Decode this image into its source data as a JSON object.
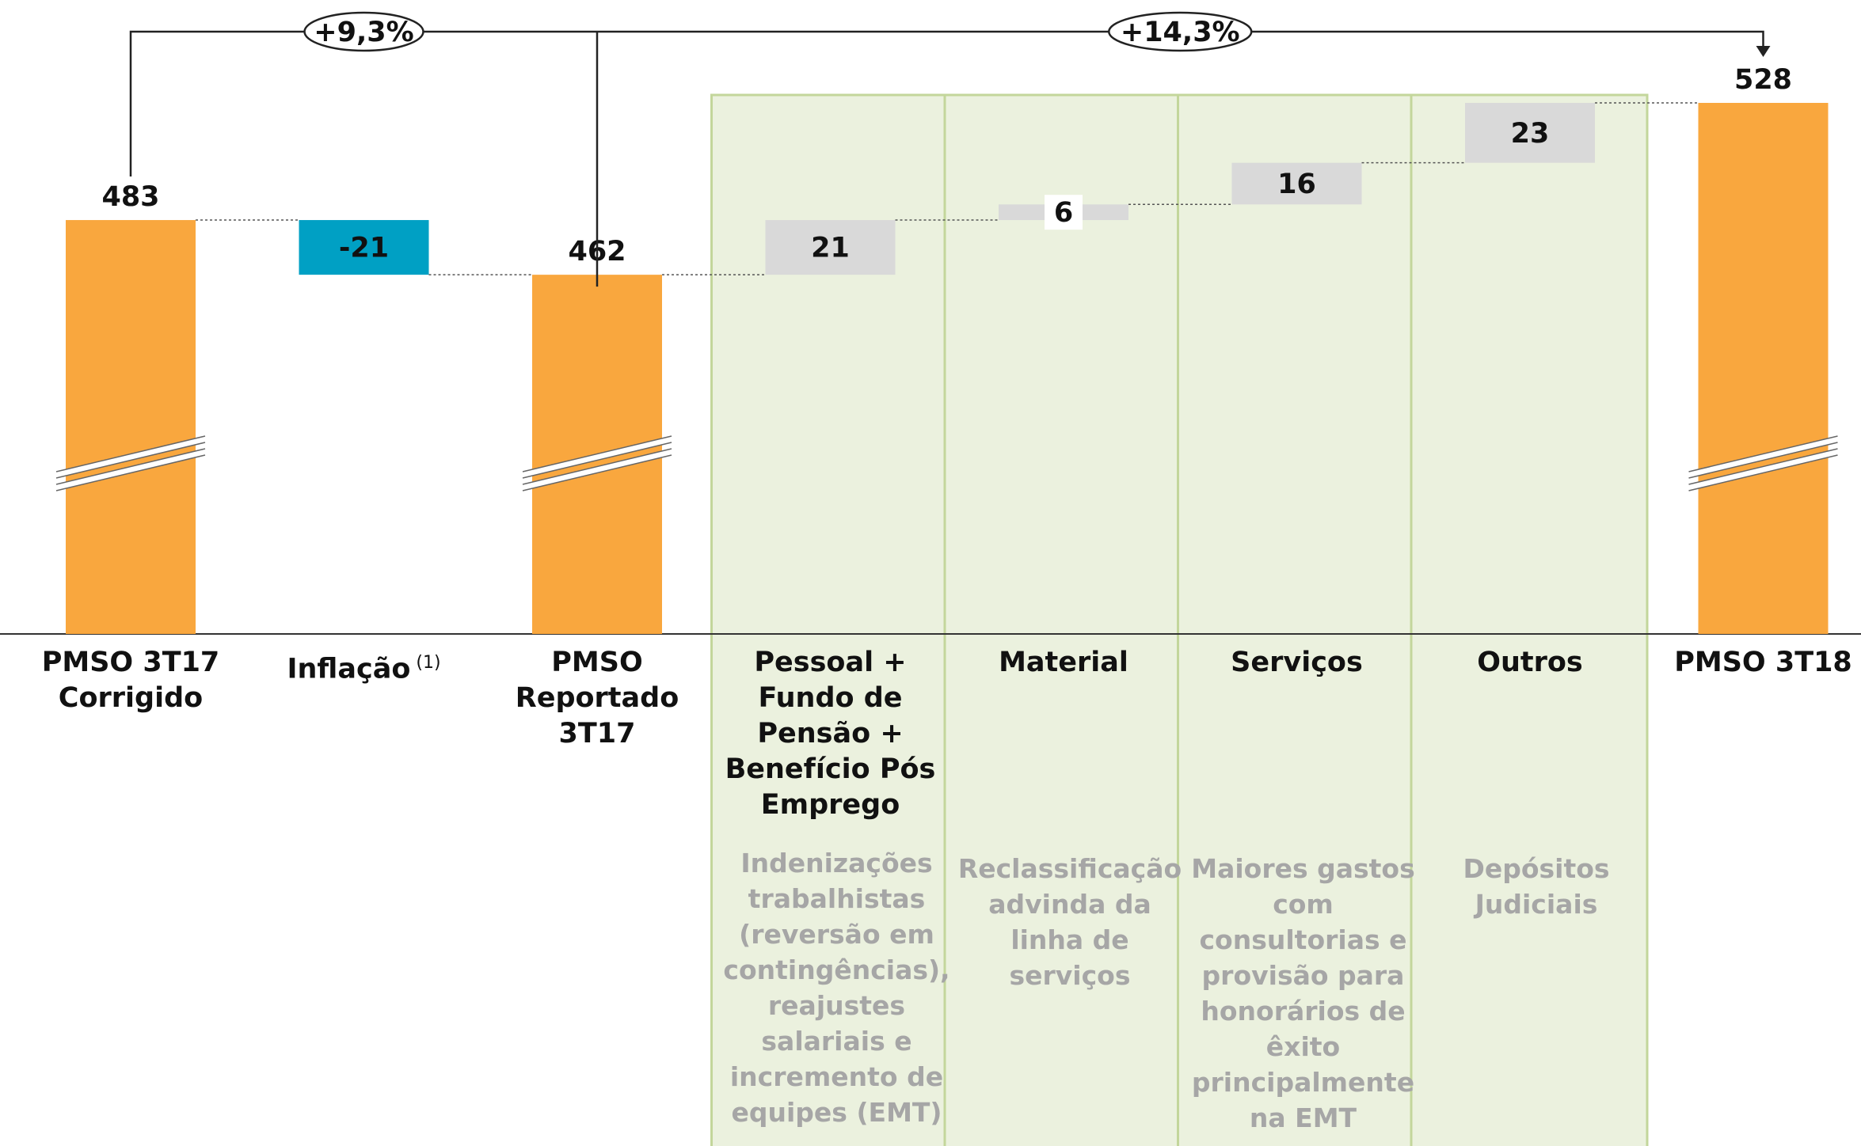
{
  "chart_data": {
    "type": "waterfall",
    "categories": [
      "PMSO 3T17 Corrigido",
      "Inflação",
      "PMSO Reportado 3T17",
      "Pessoal + Fundo de Pensão + Benefício Pós Emprego",
      "Material",
      "Serviços",
      "Outros",
      "PMSO 3T18"
    ],
    "category_footnotes": [
      null,
      "(1)",
      null,
      null,
      null,
      null,
      null,
      null
    ],
    "values": [
      483,
      -21,
      462,
      21,
      6,
      16,
      23,
      528
    ],
    "is_total": [
      true,
      false,
      true,
      false,
      false,
      false,
      false,
      true
    ],
    "colors": {
      "total": "#f9a73e",
      "negative": "#00a0c4",
      "positive": "#d9d9d9"
    },
    "highlight_color": "#ebf1de",
    "notes": [
      null,
      null,
      null,
      "Indenizações trabalhistas (reversão em contingências), reajustes salariais e incremento de equipes (EMT)",
      "Reclassificação advinda da linha de serviços",
      "Maiores gastos com consultorias e provisão para honorários de êxito principalmente na EMT",
      "Depósitos Judiciais",
      null
    ],
    "annotations": [
      {
        "text": "+9,3%"
      },
      {
        "text": "+14,3%"
      }
    ]
  }
}
